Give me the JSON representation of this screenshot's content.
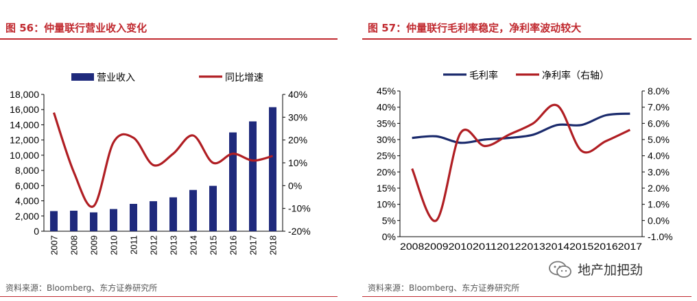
{
  "left": {
    "title": "图 56：仲量联行营业收入变化",
    "source": "资料来源：Bloomberg、东方证券研究所"
  },
  "right": {
    "title": "图 57：仲量联行毛利率稳定，净利率波动较大",
    "source": "资料来源：Bloomberg、东方证券研究所"
  },
  "watermark": {
    "text": "地产加把劲",
    "icon": "wechat-icon"
  },
  "colors": {
    "bar": "#1f2a7c",
    "red_line": "#b01e23",
    "navy_line": "#1a2a6c",
    "title_red": "#c0282e"
  },
  "chart_data": [
    {
      "type": "bar",
      "title": "图 56：仲量联行营业收入变化",
      "categories": [
        "2007",
        "2008",
        "2009",
        "2010",
        "2011",
        "2012",
        "2013",
        "2014",
        "2015",
        "2016",
        "2017",
        "2018"
      ],
      "series": [
        {
          "name": "营业收入",
          "type": "bar",
          "axis": "left",
          "values": [
            2650,
            2700,
            2480,
            2920,
            3600,
            3950,
            4460,
            5430,
            5970,
            13000,
            14450,
            16320
          ]
        },
        {
          "name": "同比增速",
          "type": "line",
          "axis": "right",
          "values": [
            32,
            6,
            -9,
            19,
            21,
            9,
            14,
            22,
            10,
            14,
            11,
            13
          ]
        }
      ],
      "ylim_left": [
        0,
        18000
      ],
      "yticks_left": [
        "0",
        "2,000",
        "4,000",
        "6,000",
        "8,000",
        "10,000",
        "12,000",
        "14,000",
        "16,000",
        "18,000"
      ],
      "ylim_right": [
        -20,
        40
      ],
      "yticks_right": [
        "-20%",
        "-10%",
        "0%",
        "10%",
        "20%",
        "30%",
        "40%"
      ],
      "legend": "top"
    },
    {
      "type": "line",
      "title": "图 57：仲量联行毛利率稳定，净利率波动较大",
      "categories": [
        "2008",
        "2009",
        "2010",
        "2011",
        "2012",
        "2013",
        "2014",
        "2015",
        "2016",
        "2017"
      ],
      "series": [
        {
          "name": "毛利率",
          "axis": "left",
          "values": [
            30.5,
            31,
            29,
            30,
            30.5,
            31.5,
            34.5,
            34.5,
            37.5,
            38
          ]
        },
        {
          "name": "净利率（右轴）",
          "axis": "right",
          "values": [
            3.2,
            0.0,
            5.4,
            4.6,
            5.3,
            6.0,
            7.1,
            4.3,
            4.9,
            5.6
          ]
        }
      ],
      "ylim_left": [
        0,
        45
      ],
      "yticks_left": [
        "0%",
        "5%",
        "10%",
        "15%",
        "20%",
        "25%",
        "30%",
        "35%",
        "40%",
        "45%"
      ],
      "ylim_right": [
        -1,
        8
      ],
      "yticks_right": [
        "-1.0%",
        "0.0%",
        "1.0%",
        "2.0%",
        "3.0%",
        "4.0%",
        "5.0%",
        "6.0%",
        "7.0%",
        "8.0%"
      ],
      "legend": "top"
    }
  ]
}
